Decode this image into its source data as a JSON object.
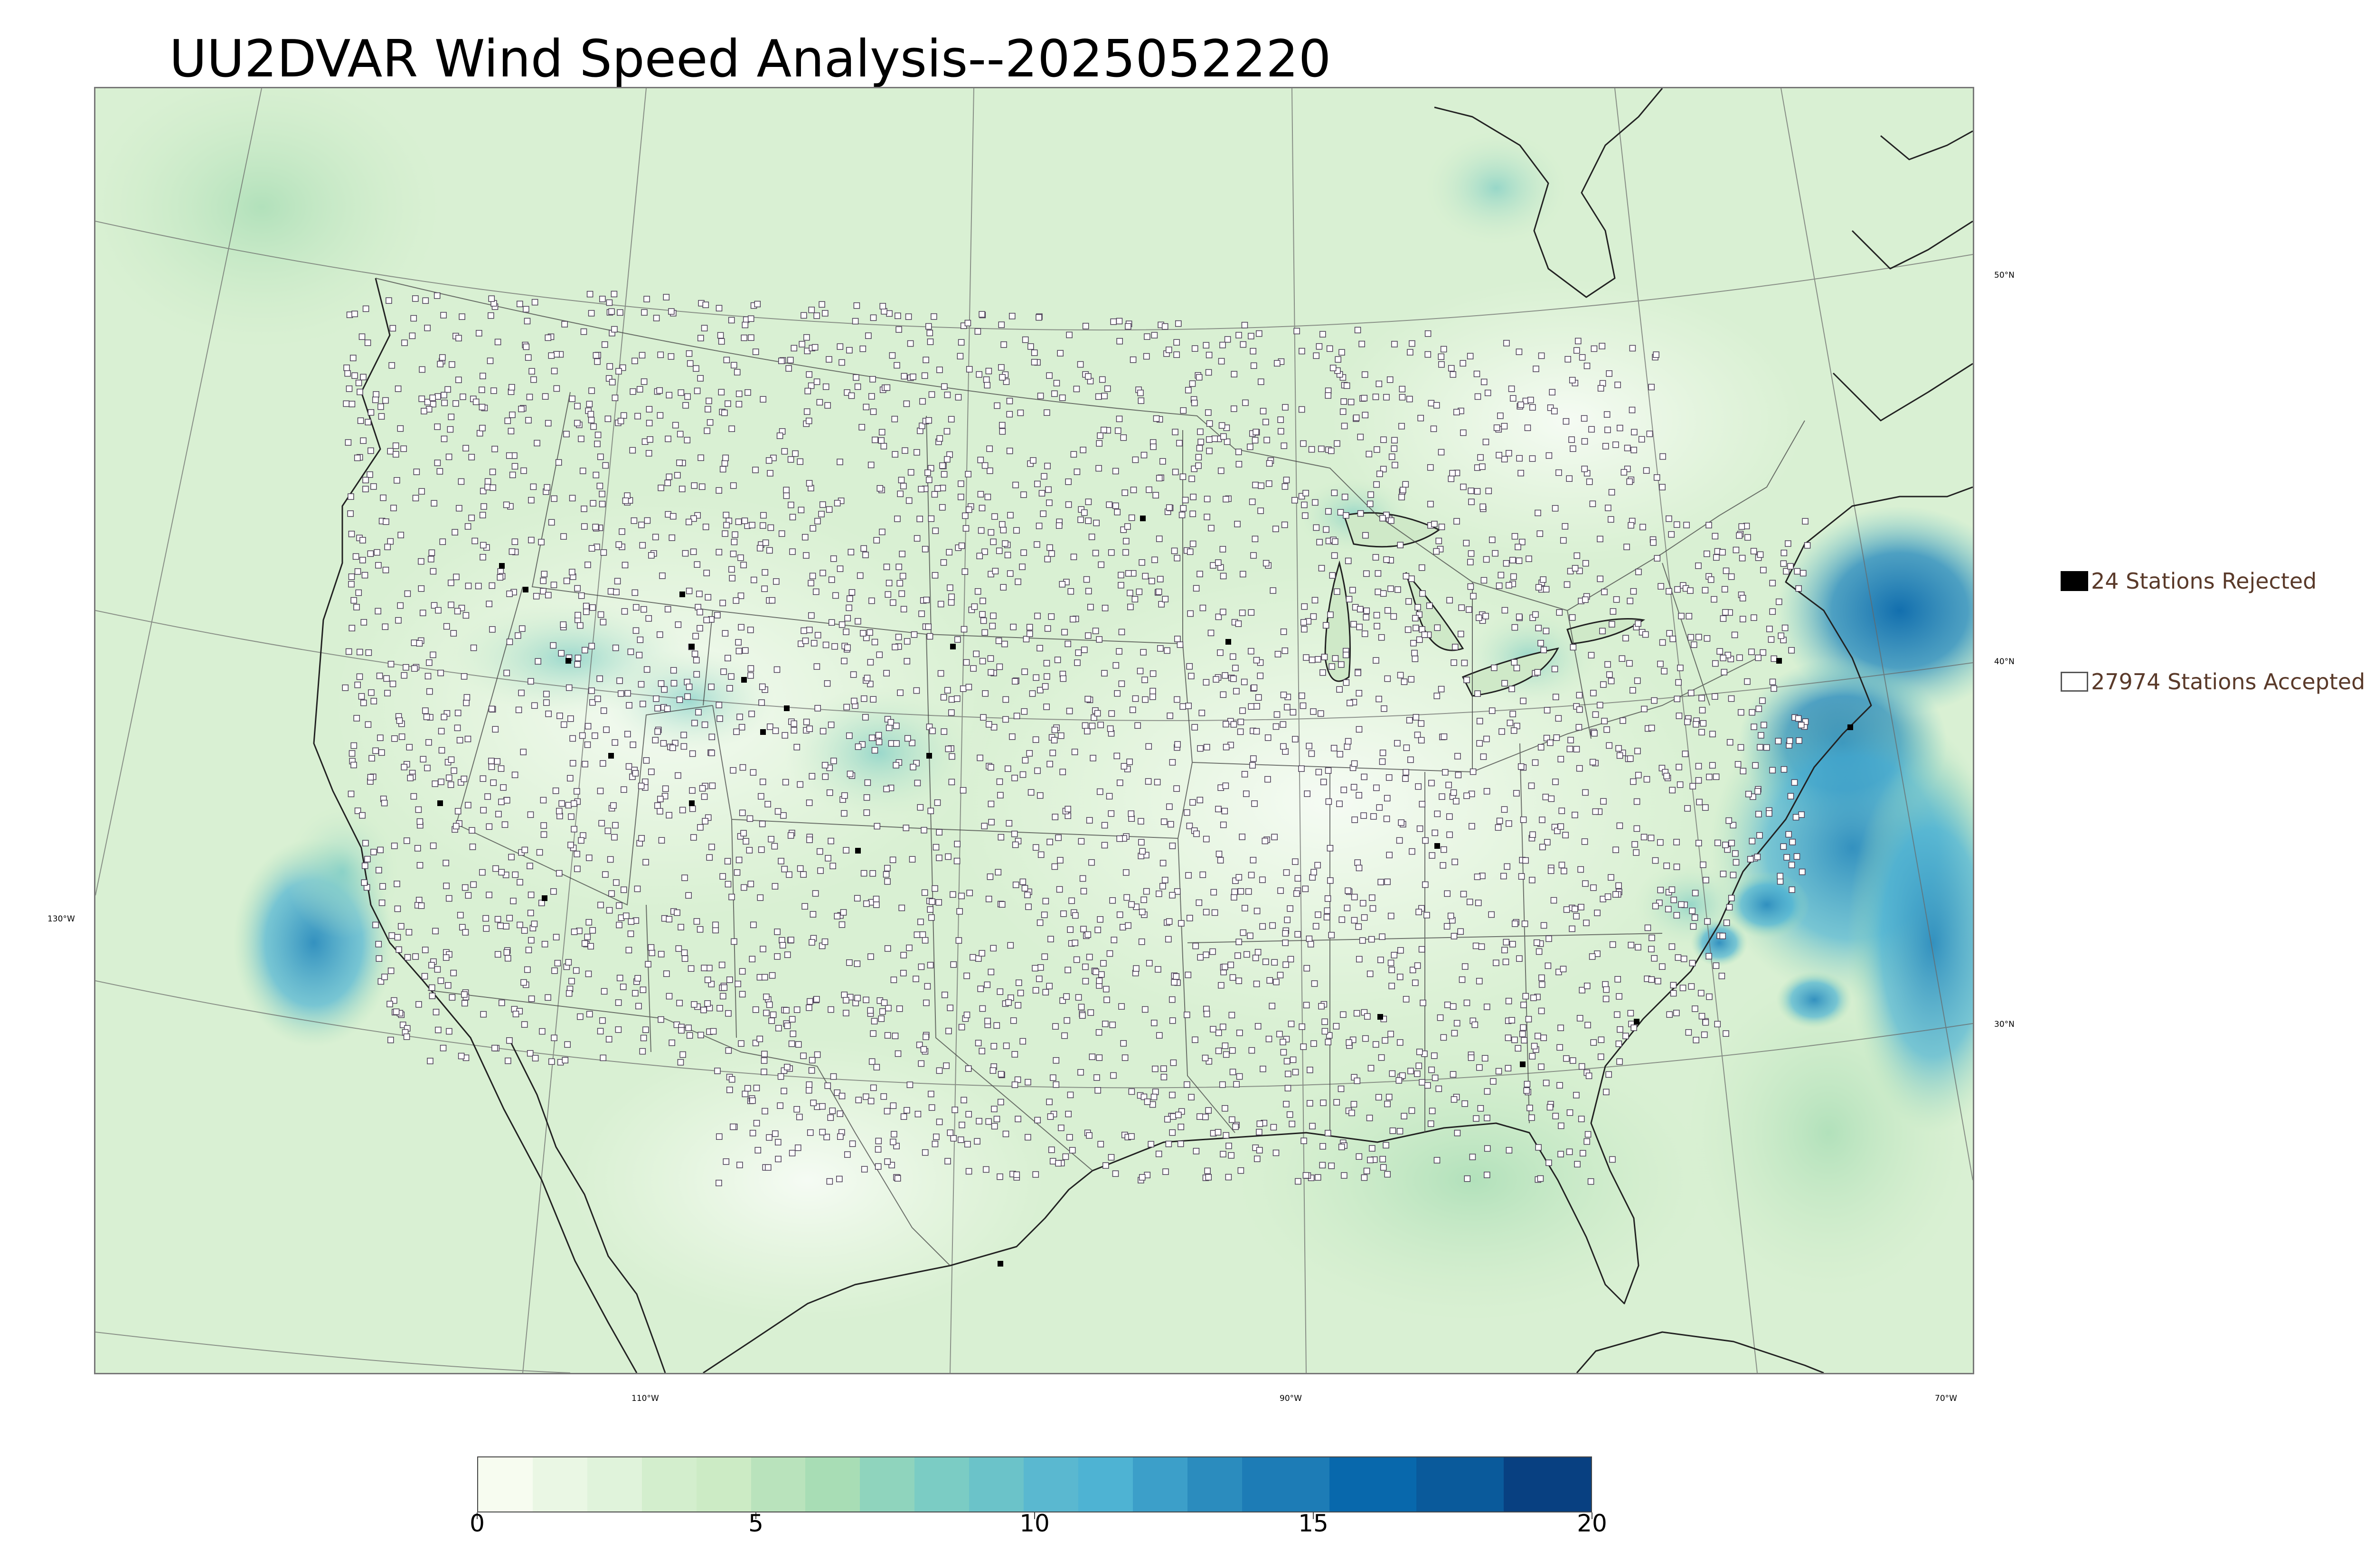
{
  "title": "UU2DVAR Wind Speed Analysis--2025052220",
  "map": {
    "longitude_labels": [
      "110°W",
      "90°W",
      "70°W"
    ],
    "latitude_labels": [
      "50°N",
      "40°N",
      "30°N"
    ],
    "left_label": "130°W"
  },
  "legend": {
    "rejected_label": "24 Stations Rejected",
    "accepted_label": "27974 Stations Accepted",
    "rejected_color": "#000000",
    "accepted_color": "#ffffff"
  },
  "colorbar": {
    "min": 0,
    "max": 20,
    "ticks": [
      "0",
      "5",
      "10",
      "15",
      "20"
    ],
    "colors": [
      "#f7fcf0",
      "#eaf7e4",
      "#e0f3db",
      "#d3eecd",
      "#ccebc5",
      "#b9e3bc",
      "#a8ddb5",
      "#8fd4bd",
      "#7bccc4",
      "#6bc3c9",
      "#5ab8d0",
      "#4eb3d3",
      "#3c9fc9",
      "#2b8cbe",
      "#1d7cb6",
      "#0868ac",
      "#0a5a9b",
      "#084081"
    ]
  }
}
